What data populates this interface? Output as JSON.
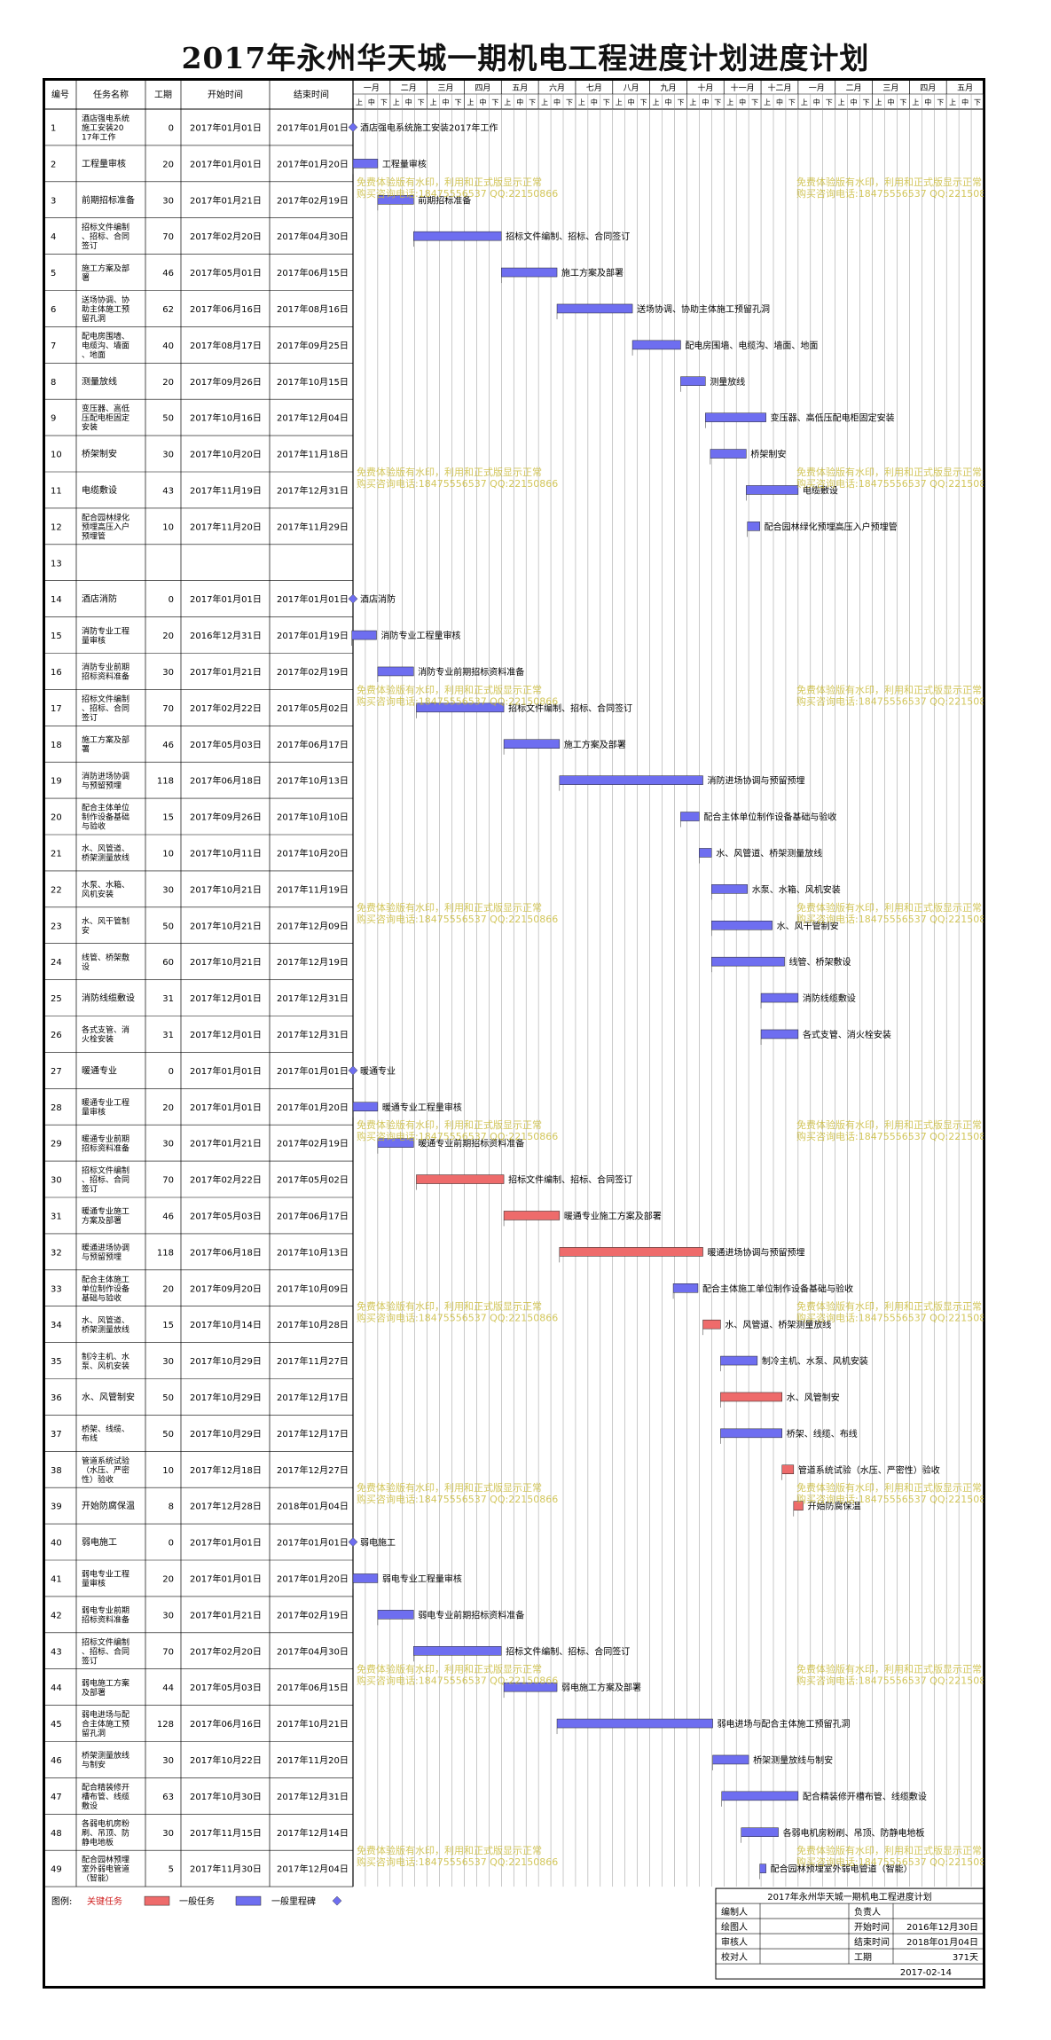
{
  "title": "2017年永州华天城一期机电工程进度计划进度计划",
  "colors": {
    "critical": "#ee6b6b",
    "normal": "#6e6ef0",
    "milestone": "#6e6ef0",
    "border": "#000",
    "grid": "#888",
    "watermark": "#c8b832"
  },
  "columns": [
    "编号",
    "任务名称",
    "工期",
    "开始时间",
    "结束时间"
  ],
  "months": [
    "一月",
    "二月",
    "三月",
    "四月",
    "五月",
    "六月",
    "七月",
    "八月",
    "九月",
    "十月",
    "十一月",
    "十二月",
    "一月",
    "二月",
    "三月",
    "四月",
    "五月"
  ],
  "decades": [
    "上",
    "中",
    "下"
  ],
  "watermark_lines": [
    "免费体验版有水印，利用和正式版显示正常",
    "购买咨询电话:18475556537 QQ:22150866"
  ],
  "tasks": [
    {
      "id": "1",
      "name": "酒店强电系统施工安装2017年工作",
      "dur": "0",
      "start": "2017年01月01日",
      "end": "2017年01月01日",
      "label": "酒店强电系统施工安装2017年工作",
      "type": "milestone"
    },
    {
      "id": "2",
      "name": "工程量审核",
      "dur": "20",
      "start": "2017年01月01日",
      "end": "2017年01月20日",
      "label": "工程量审核",
      "type": "normal"
    },
    {
      "id": "3",
      "name": "前期招标准备",
      "dur": "30",
      "start": "2017年01月21日",
      "end": "2017年02月19日",
      "label": "前期招标准备",
      "type": "normal"
    },
    {
      "id": "4",
      "name": "招标文件编制、招标、合同签订",
      "dur": "70",
      "start": "2017年02月20日",
      "end": "2017年04月30日",
      "label": "招标文件编制、招标、合同签订",
      "type": "normal"
    },
    {
      "id": "5",
      "name": "施工方案及部署",
      "dur": "46",
      "start": "2017年05月01日",
      "end": "2017年06月15日",
      "label": "施工方案及部署",
      "type": "normal"
    },
    {
      "id": "6",
      "name": "送场协调、协助主体施工预留孔洞",
      "dur": "62",
      "start": "2017年06月16日",
      "end": "2017年08月16日",
      "label": "送场协调、协助主体施工预留孔洞",
      "type": "normal"
    },
    {
      "id": "7",
      "name": "配电房围墙、电缆沟、墙面、地面",
      "dur": "40",
      "start": "2017年08月17日",
      "end": "2017年09月25日",
      "label": "配电房围墙、电缆沟、墙面、地面",
      "type": "normal"
    },
    {
      "id": "8",
      "name": "测量放线",
      "dur": "20",
      "start": "2017年09月26日",
      "end": "2017年10月15日",
      "label": "测量放线",
      "type": "normal"
    },
    {
      "id": "9",
      "name": "变压器、高低压配电柜固定安装",
      "dur": "50",
      "start": "2017年10月16日",
      "end": "2017年12月04日",
      "label": "变压器、高低压配电柜固定安装",
      "type": "normal"
    },
    {
      "id": "10",
      "name": "桥架制安",
      "dur": "30",
      "start": "2017年10月20日",
      "end": "2017年11月18日",
      "label": "桥架制安",
      "type": "normal"
    },
    {
      "id": "11",
      "name": "电缆敷设",
      "dur": "43",
      "start": "2017年11月19日",
      "end": "2017年12月31日",
      "label": "电缆敷设",
      "type": "normal"
    },
    {
      "id": "12",
      "name": "配合园林绿化预埋高压入户预埋管",
      "dur": "10",
      "start": "2017年11月20日",
      "end": "2017年11月29日",
      "label": "配合园林绿化预埋高压入户预埋管",
      "type": "normal"
    },
    {
      "id": "13",
      "name": "",
      "dur": "",
      "start": "",
      "end": "",
      "label": "",
      "type": "none"
    },
    {
      "id": "14",
      "name": "酒店消防",
      "dur": "0",
      "start": "2017年01月01日",
      "end": "2017年01月01日",
      "label": "酒店消防",
      "type": "milestone"
    },
    {
      "id": "15",
      "name": "消防专业工程量审核",
      "dur": "20",
      "start": "2016年12月31日",
      "end": "2017年01月19日",
      "label": "消防专业工程量审核",
      "type": "normal"
    },
    {
      "id": "16",
      "name": "消防专业前期招标资料准备",
      "dur": "30",
      "start": "2017年01月21日",
      "end": "2017年02月19日",
      "label": "消防专业前期招标资料准备",
      "type": "normal"
    },
    {
      "id": "17",
      "name": "招标文件编制、招标、合同签订",
      "dur": "70",
      "start": "2017年02月22日",
      "end": "2017年05月02日",
      "label": "招标文件编制、招标、合同签订",
      "type": "normal"
    },
    {
      "id": "18",
      "name": "施工方案及部署",
      "dur": "46",
      "start": "2017年05月03日",
      "end": "2017年06月17日",
      "label": "施工方案及部署",
      "type": "normal"
    },
    {
      "id": "19",
      "name": "消防进场协调与预留预埋",
      "dur": "118",
      "start": "2017年06月18日",
      "end": "2017年10月13日",
      "label": "消防进场协调与预留预埋",
      "type": "normal"
    },
    {
      "id": "20",
      "name": "配合主体单位制作设备基础与验收",
      "dur": "15",
      "start": "2017年09月26日",
      "end": "2017年10月10日",
      "label": "配合主体单位制作设备基础与验收",
      "type": "normal"
    },
    {
      "id": "21",
      "name": "水、风管道、桥架测量放线",
      "dur": "10",
      "start": "2017年10月11日",
      "end": "2017年10月20日",
      "label": "水、风管道、桥架测量放线",
      "type": "normal"
    },
    {
      "id": "22",
      "name": "水泵、水箱、风机安装",
      "dur": "30",
      "start": "2017年10月21日",
      "end": "2017年11月19日",
      "label": "水泵、水箱、风机安装",
      "type": "normal"
    },
    {
      "id": "23",
      "name": "水、风干管制安",
      "dur": "50",
      "start": "2017年10月21日",
      "end": "2017年12月09日",
      "label": "水、风干管制安",
      "type": "normal"
    },
    {
      "id": "24",
      "name": "线管、桥架敷设",
      "dur": "60",
      "start": "2017年10月21日",
      "end": "2017年12月19日",
      "label": "线管、桥架敷设",
      "type": "normal"
    },
    {
      "id": "25",
      "name": "消防线缆敷设",
      "dur": "31",
      "start": "2017年12月01日",
      "end": "2017年12月31日",
      "label": "消防线缆敷设",
      "type": "normal"
    },
    {
      "id": "26",
      "name": "各式支管、消火栓安装",
      "dur": "31",
      "start": "2017年12月01日",
      "end": "2017年12月31日",
      "label": "各式支管、消火栓安装",
      "type": "normal"
    },
    {
      "id": "27",
      "name": "暖通专业",
      "dur": "0",
      "start": "2017年01月01日",
      "end": "2017年01月01日",
      "label": "暖通专业",
      "type": "milestone"
    },
    {
      "id": "28",
      "name": "暖通专业工程量审核",
      "dur": "20",
      "start": "2017年01月01日",
      "end": "2017年01月20日",
      "label": "暖通专业工程量审核",
      "type": "normal"
    },
    {
      "id": "29",
      "name": "暖通专业前期招标资料准备",
      "dur": "30",
      "start": "2017年01月21日",
      "end": "2017年02月19日",
      "label": "暖通专业前期招标资料准备",
      "type": "normal"
    },
    {
      "id": "30",
      "name": "招标文件编制、招标、合同签订",
      "dur": "70",
      "start": "2017年02月22日",
      "end": "2017年05月02日",
      "label": "招标文件编制、招标、合同签订",
      "type": "critical"
    },
    {
      "id": "31",
      "name": "暖通专业施工方案及部署",
      "dur": "46",
      "start": "2017年05月03日",
      "end": "2017年06月17日",
      "label": "暖通专业施工方案及部署",
      "type": "critical"
    },
    {
      "id": "32",
      "name": "暖通进场协调与预留预埋",
      "dur": "118",
      "start": "2017年06月18日",
      "end": "2017年10月13日",
      "label": "暖通进场协调与预留预埋",
      "type": "critical"
    },
    {
      "id": "33",
      "name": "配合主体施工单位制作设备基础与验收",
      "dur": "20",
      "start": "2017年09月20日",
      "end": "2017年10月09日",
      "label": "配合主体施工单位制作设备基础与验收",
      "type": "normal"
    },
    {
      "id": "34",
      "name": "水、风管道、桥架测量放线",
      "dur": "15",
      "start": "2017年10月14日",
      "end": "2017年10月28日",
      "label": "水、风管道、桥架测量放线",
      "type": "critical"
    },
    {
      "id": "35",
      "name": "制冷主机、水泵、风机安装",
      "dur": "30",
      "start": "2017年10月29日",
      "end": "2017年11月27日",
      "label": "制冷主机、水泵、风机安装",
      "type": "normal"
    },
    {
      "id": "36",
      "name": "水、风管制安",
      "dur": "50",
      "start": "2017年10月29日",
      "end": "2017年12月17日",
      "label": "水、风管制安",
      "type": "critical"
    },
    {
      "id": "37",
      "name": "桥架、线缆、布线",
      "dur": "50",
      "start": "2017年10月29日",
      "end": "2017年12月17日",
      "label": "桥架、线缆、布线",
      "type": "normal"
    },
    {
      "id": "38",
      "name": "管道系统试验（水压、严密性）验收",
      "dur": "10",
      "start": "2017年12月18日",
      "end": "2017年12月27日",
      "label": "管道系统试验（水压、严密性）验收",
      "type": "critical"
    },
    {
      "id": "39",
      "name": "开始防腐保温",
      "dur": "8",
      "start": "2017年12月28日",
      "end": "2018年01月04日",
      "label": "开始防腐保温",
      "type": "critical"
    },
    {
      "id": "40",
      "name": "弱电施工",
      "dur": "0",
      "start": "2017年01月01日",
      "end": "2017年01月01日",
      "label": "弱电施工",
      "type": "milestone"
    },
    {
      "id": "41",
      "name": "弱电专业工程量审核",
      "dur": "20",
      "start": "2017年01月01日",
      "end": "2017年01月20日",
      "label": "弱电专业工程量审核",
      "type": "normal"
    },
    {
      "id": "42",
      "name": "弱电专业前期招标资料准备",
      "dur": "30",
      "start": "2017年01月21日",
      "end": "2017年02月19日",
      "label": "弱电专业前期招标资料准备",
      "type": "normal"
    },
    {
      "id": "43",
      "name": "招标文件编制、招标、合同签订",
      "dur": "70",
      "start": "2017年02月20日",
      "end": "2017年04月30日",
      "label": "招标文件编制、招标、合同签订",
      "type": "normal"
    },
    {
      "id": "44",
      "name": "弱电施工方案及部署",
      "dur": "44",
      "start": "2017年05月03日",
      "end": "2017年06月15日",
      "label": "弱电施工方案及部署",
      "type": "normal"
    },
    {
      "id": "45",
      "name": "弱电进场与配合主体施工预留孔洞",
      "dur": "128",
      "start": "2017年06月16日",
      "end": "2017年10月21日",
      "label": "弱电进场与配合主体施工预留孔洞",
      "type": "normal"
    },
    {
      "id": "46",
      "name": "桥架测量放线与制安",
      "dur": "30",
      "start": "2017年10月22日",
      "end": "2017年11月20日",
      "label": "桥架测量放线与制安",
      "type": "normal"
    },
    {
      "id": "47",
      "name": "配合精装修开槽布管、线缆敷设",
      "dur": "63",
      "start": "2017年10月30日",
      "end": "2017年12月31日",
      "label": "配合精装修开槽布管、线缆敷设",
      "type": "normal"
    },
    {
      "id": "48",
      "name": "各弱电机房粉刷、吊顶、防静电地板",
      "dur": "30",
      "start": "2017年11月15日",
      "end": "2017年12月14日",
      "label": "各弱电机房粉刷、吊顶、防静电地板",
      "type": "normal"
    },
    {
      "id": "49",
      "name": "配合园林预埋室外弱电管道（智能）",
      "dur": "5",
      "start": "2017年11月30日",
      "end": "2017年12月04日",
      "label": "配合园林预埋室外弱电管道（智能）",
      "type": "normal"
    }
  ],
  "legend": {
    "prefix": "图例:",
    "critical": "关键任务",
    "normal": "一般任务",
    "milestone": "一般里程碑"
  },
  "info": {
    "title": "2017年永州华天城一期机电工程进度计划",
    "rows": [
      [
        "编制人",
        "",
        "负责人",
        ""
      ],
      [
        "绘图人",
        "",
        "开始时间",
        "2016年12月30日"
      ],
      [
        "审核人",
        "",
        "结束时间",
        "2018年01月04日"
      ],
      [
        "校对人",
        "",
        "工期",
        "371天"
      ]
    ],
    "date": "2017-02-14"
  }
}
